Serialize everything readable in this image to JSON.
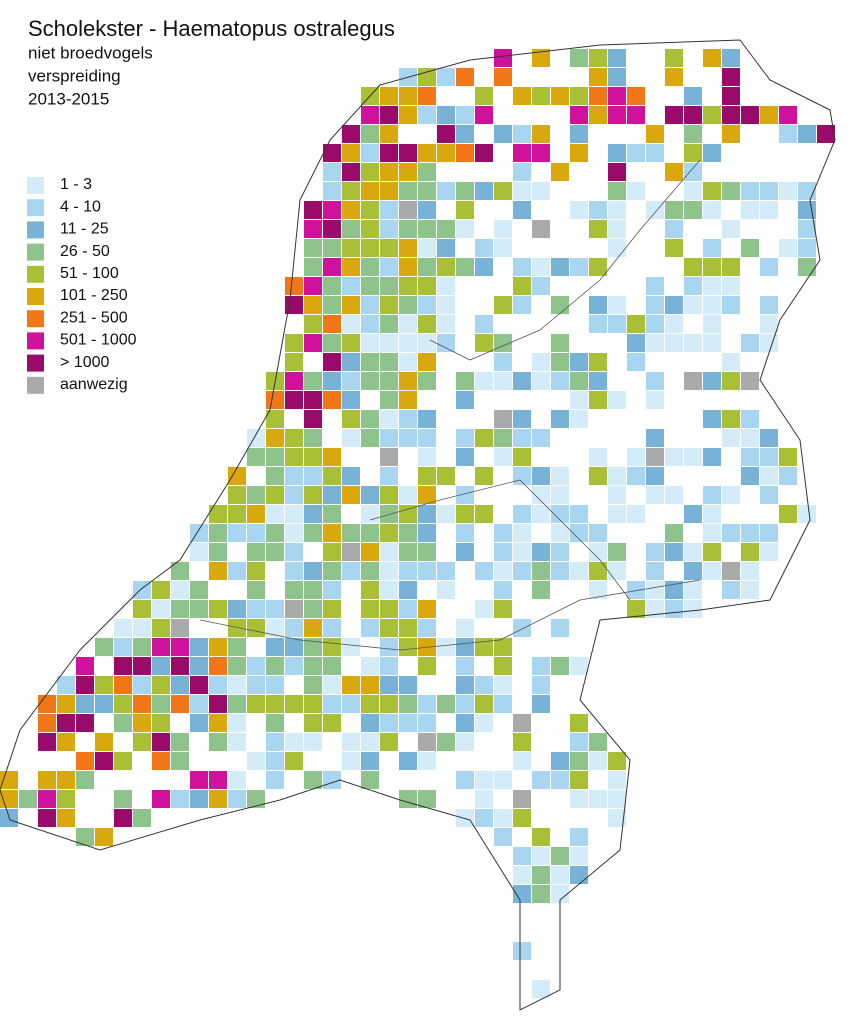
{
  "header": {
    "title": "Scholekster - Haematopus ostralegus",
    "lines": [
      "niet broedvogels",
      "verspreiding",
      "2013-2015"
    ]
  },
  "legend": {
    "items": [
      {
        "label": "1 - 3",
        "color": "#d4ebf8"
      },
      {
        "label": "4 - 10",
        "color": "#a8d6f0"
      },
      {
        "label": "11 - 25",
        "color": "#78b2d6"
      },
      {
        "label": "26 - 50",
        "color": "#8fc38c"
      },
      {
        "label": "51 - 100",
        "color": "#a8bf36"
      },
      {
        "label": "101 - 250",
        "color": "#d9a70e"
      },
      {
        "label": "251 - 500",
        "color": "#f07618"
      },
      {
        "label": "501 - 1000",
        "color": "#d0119b"
      },
      {
        "label": "> 1000",
        "color": "#990a6a"
      },
      {
        "label": "aanwezig",
        "color": "#aaaaaa"
      }
    ]
  }
}
